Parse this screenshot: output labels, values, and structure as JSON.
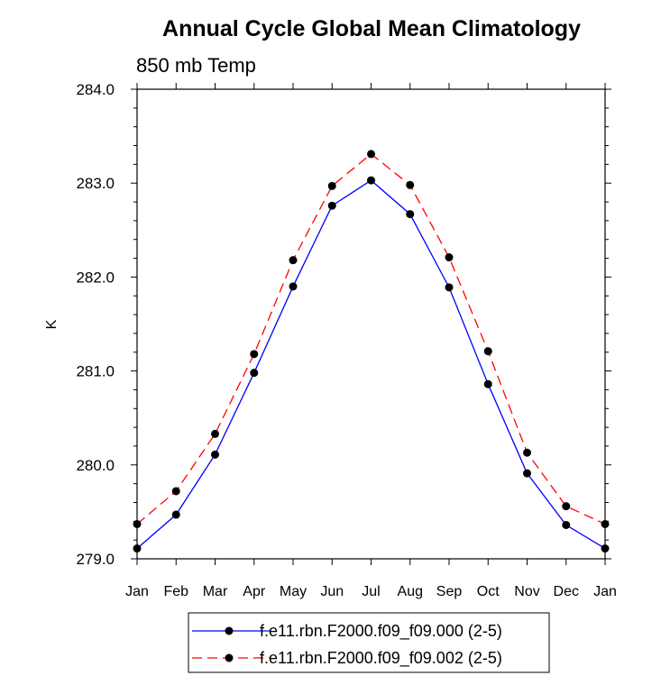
{
  "chart_data": {
    "type": "line",
    "title": "Annual Cycle Global Mean Climatology",
    "subtitle": "850 mb Temp",
    "xlabel": "",
    "ylabel": "K",
    "categories": [
      "Jan",
      "Feb",
      "Mar",
      "Apr",
      "May",
      "Jun",
      "Jul",
      "Aug",
      "Sep",
      "Oct",
      "Nov",
      "Dec",
      "Jan"
    ],
    "ylim": [
      279.0,
      284.0
    ],
    "yticks": [
      "279.0",
      "280.0",
      "281.0",
      "282.0",
      "283.0",
      "284.0"
    ],
    "series": [
      {
        "name": "f.e11.rbn.F2000.f09_f09.000 (2-5)",
        "color": "#0000ff",
        "dash": "solid",
        "marker": "filled-circle",
        "values": [
          279.11,
          279.47,
          280.11,
          280.98,
          281.9,
          282.76,
          283.03,
          282.67,
          281.89,
          280.86,
          279.91,
          279.36,
          279.11
        ]
      },
      {
        "name": "f.e11.rbn.F2000.f09_f09.002 (2-5)",
        "color": "#ff0000",
        "dash": "dashed",
        "marker": "filled-circle",
        "values": [
          279.37,
          279.72,
          280.33,
          281.18,
          282.18,
          282.97,
          283.31,
          282.98,
          282.21,
          281.21,
          280.13,
          279.56,
          279.37
        ]
      }
    ],
    "grid": false,
    "legend_position": "bottom-center"
  }
}
